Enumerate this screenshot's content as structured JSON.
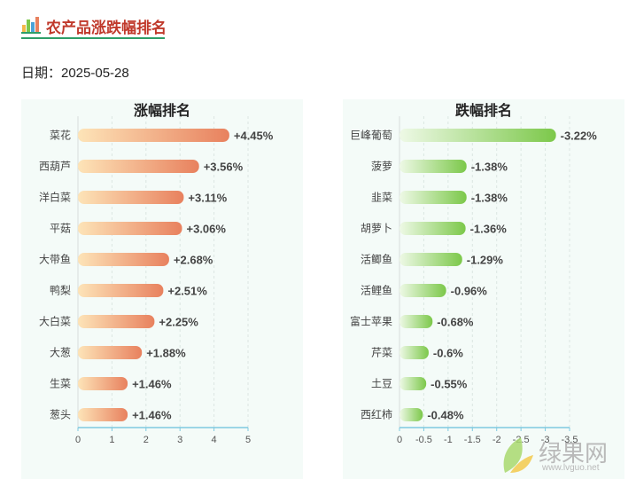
{
  "page": {
    "title": "农产品涨跌幅排名",
    "date_label": "日期：2025-05-28"
  },
  "watermark": {
    "brand": "绿果网",
    "url": "www.lvguo.net"
  },
  "colors": {
    "gain_start": "#fde4b8",
    "gain_end": "#e8815e",
    "loss_start": "#eef9e6",
    "loss_end": "#7cc84a",
    "title_red": "#c0392b",
    "panel_bg": "#f4fbf8",
    "axis_line": "#7ec9e0"
  },
  "chart_data": [
    {
      "type": "bar",
      "orientation": "horizontal",
      "title": "涨幅排名",
      "categories": [
        "菜花",
        "西葫芦",
        "洋白菜",
        "平菇",
        "大带鱼",
        "鸭梨",
        "大白菜",
        "大葱",
        "生菜",
        "葱头"
      ],
      "values": [
        4.45,
        3.56,
        3.11,
        3.06,
        2.68,
        2.51,
        2.25,
        1.88,
        1.46,
        1.46
      ],
      "data_labels": [
        "+4.45%",
        "+3.56%",
        "+3.11%",
        "+3.06%",
        "+2.68%",
        "+2.51%",
        "+2.25%",
        "+1.88%",
        "+1.46%",
        "+1.46%"
      ],
      "xlim": [
        0,
        5
      ],
      "xticks": [
        "0",
        "1",
        "2",
        "3",
        "4",
        "5"
      ],
      "xtick_values": [
        0,
        1,
        2,
        3,
        4,
        5
      ],
      "grid": "vertical dashed"
    },
    {
      "type": "bar",
      "orientation": "horizontal",
      "title": "跌幅排名",
      "categories": [
        "巨峰葡萄",
        "菠萝",
        "韭菜",
        "胡萝卜",
        "活鲫鱼",
        "活鲤鱼",
        "富士苹果",
        "芹菜",
        "土豆",
        "西红柿"
      ],
      "values": [
        -3.22,
        -1.38,
        -1.38,
        -1.36,
        -1.29,
        -0.96,
        -0.68,
        -0.6,
        -0.55,
        -0.48
      ],
      "data_labels": [
        "-3.22%",
        "-1.38%",
        "-1.38%",
        "-1.36%",
        "-1.29%",
        "-0.96%",
        "-0.68%",
        "-0.6%",
        "-0.55%",
        "-0.48%"
      ],
      "xlim": [
        0,
        -3.5
      ],
      "xticks": [
        "0",
        "-0.5",
        "-1",
        "-1.5",
        "-2",
        "-2.5",
        "-3",
        "-3.5"
      ],
      "xtick_values": [
        0,
        -0.5,
        -1,
        -1.5,
        -2,
        -2.5,
        -3,
        -3.5
      ],
      "grid": "vertical dashed"
    }
  ]
}
